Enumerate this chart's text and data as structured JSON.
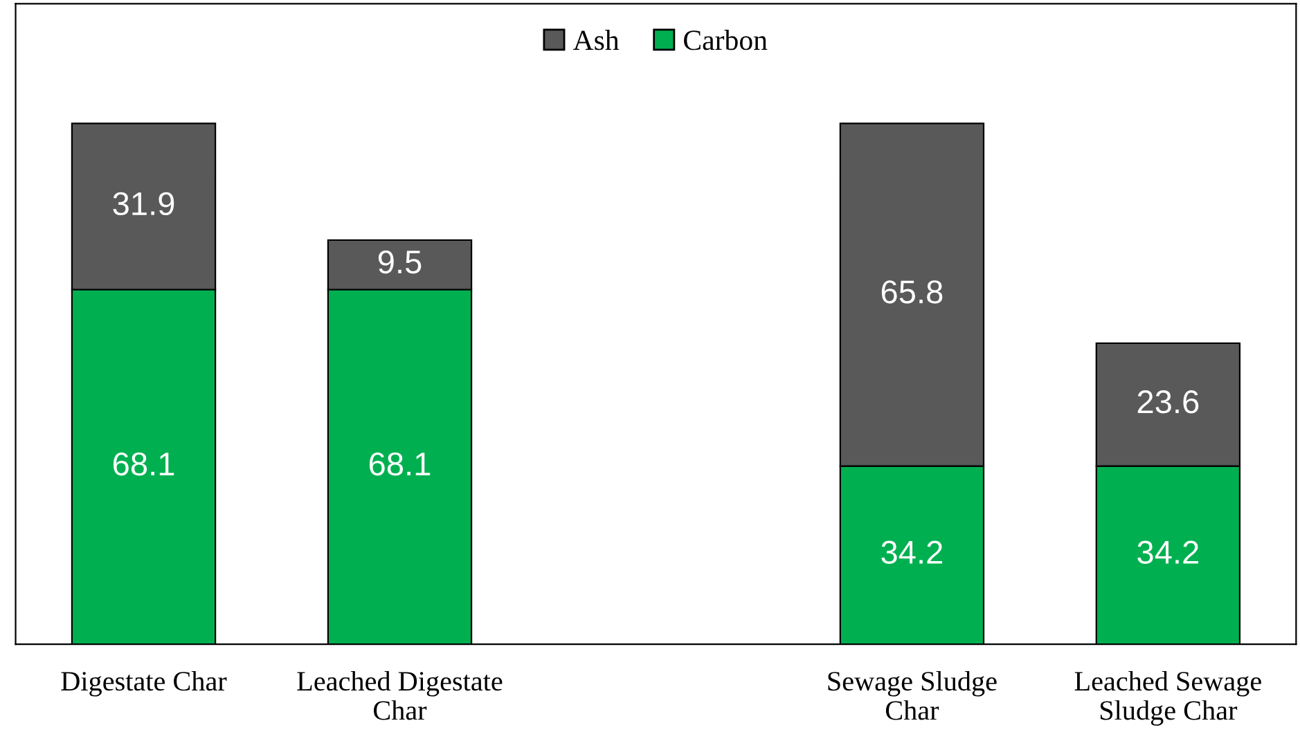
{
  "chart_data": {
    "type": "bar",
    "stacked": true,
    "data_labels": true,
    "legend": "top",
    "grid": false,
    "tick_labels": "x",
    "categories": [
      "Digestate Char",
      "Leached Digestate Char",
      null,
      "Sewage Sludge Char",
      "Leached Sewage Sludge Char"
    ],
    "series": [
      {
        "name": "Carbon",
        "color": "#00b050",
        "values": [
          68.1,
          68.1,
          null,
          34.2,
          34.2
        ]
      },
      {
        "name": "Ash",
        "color": "#595959",
        "values": [
          31.9,
          9.5,
          null,
          65.8,
          23.6
        ]
      }
    ]
  }
}
